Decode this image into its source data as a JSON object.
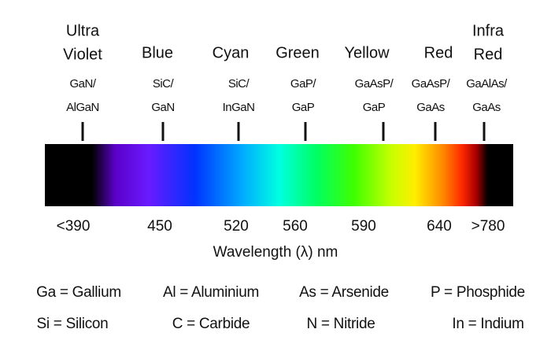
{
  "columns": [
    {
      "name": [
        "Ultra",
        "Violet"
      ],
      "material": [
        "GaN/",
        "AlGaN"
      ],
      "wavelength": "<390"
    },
    {
      "name": [
        "Blue"
      ],
      "material": [
        "SiC/",
        "GaN"
      ],
      "wavelength": "450"
    },
    {
      "name": [
        "Cyan"
      ],
      "material": [
        "SiC/",
        "InGaN"
      ],
      "wavelength": "520"
    },
    {
      "name": [
        "Green"
      ],
      "material": [
        "GaP/",
        "GaP"
      ],
      "wavelength": "560"
    },
    {
      "name": [
        "Yellow"
      ],
      "material": [
        "GaAsP/",
        "GaP"
      ],
      "wavelength": "590"
    },
    {
      "name": [
        "Red"
      ],
      "material": [
        "GaAsP/",
        "GaAs"
      ],
      "wavelength": "640"
    },
    {
      "name": [
        "Infra",
        "Red"
      ],
      "material": [
        "GaAlAs/",
        "GaAs"
      ],
      "wavelength": ">780"
    }
  ],
  "axis_label": "Wavelength (λ) nm",
  "legend": [
    [
      "Ga = Gallium",
      "Al = Aluminium",
      "As = Arsenide",
      "P = Phosphide"
    ],
    [
      "Si = Silicon",
      "C = Carbide",
      "N = Nitride",
      "In = Indium"
    ]
  ]
}
